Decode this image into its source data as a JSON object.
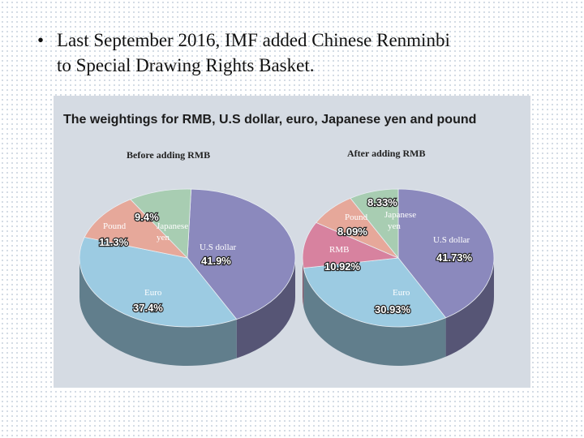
{
  "slide": {
    "bullet_char": "•",
    "lines": [
      "Last September 2016, IMF added Chinese Renminbi",
      "to Special Drawing Rights Basket."
    ]
  },
  "chart_data": {
    "type": "pie",
    "title": "The weightings for RMB, U.S dollar, euro, Japanese yen and pound",
    "colors": {
      "U.S dollar": "#8b89bd",
      "Euro": "#9ccbe2",
      "RMB": "#d7829f",
      "Pound": "#e6a89a",
      "Japanese yen": "#a8cdb2"
    },
    "charts": [
      {
        "subtitle": "Before adding RMB",
        "slices": [
          {
            "label": "U.S dollar",
            "value": 41.9,
            "display": "41.9%"
          },
          {
            "label": "Euro",
            "value": 37.4,
            "display": "37.4%"
          },
          {
            "label": "Pound",
            "value": 11.3,
            "display": "11.3%"
          },
          {
            "label": "Japanese yen",
            "value": 9.4,
            "display": "9.4%"
          }
        ]
      },
      {
        "subtitle": "After adding RMB",
        "slices": [
          {
            "label": "U.S dollar",
            "value": 41.73,
            "display": "41.73%"
          },
          {
            "label": "Euro",
            "value": 30.93,
            "display": "30.93%"
          },
          {
            "label": "RMB",
            "value": 10.92,
            "display": "10.92%"
          },
          {
            "label": "Pound",
            "value": 8.09,
            "display": "8.09%"
          },
          {
            "label": "Japanese yen",
            "value": 8.33,
            "display": "8.33%"
          }
        ]
      }
    ]
  }
}
